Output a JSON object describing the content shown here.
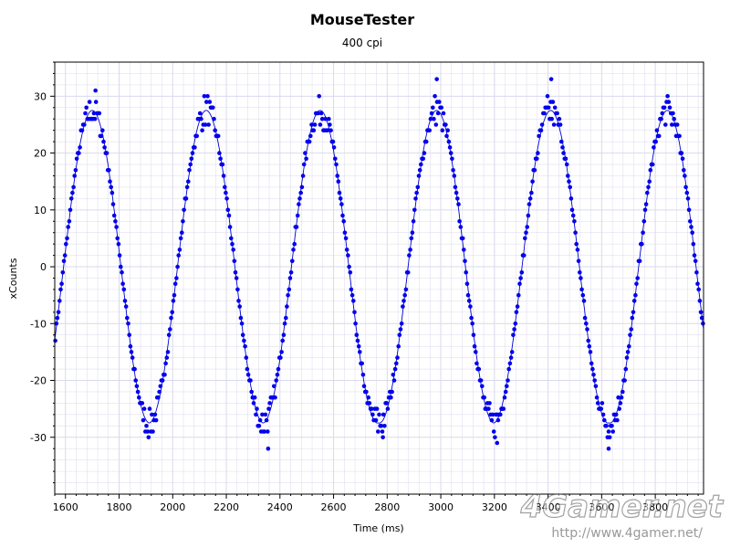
{
  "chart_data": {
    "type": "scatter",
    "title": "MouseTester",
    "subtitle": "400 cpi",
    "xlabel": "Time (ms)",
    "ylabel": "xCounts",
    "xlim": [
      1560,
      3980
    ],
    "ylim": [
      -40,
      36
    ],
    "xticks": [
      1600,
      1800,
      2000,
      2200,
      2400,
      2600,
      2800,
      3000,
      3200,
      3400,
      3600,
      3800
    ],
    "yticks": [
      30,
      20,
      10,
      0,
      -10,
      -20,
      -30
    ],
    "grid": true,
    "colors": {
      "points": "#0000ee",
      "line": "#0000cc",
      "grid": "#d9d9ee",
      "frame": "#000000"
    },
    "series": [
      {
        "kind": "points",
        "sampling_interval_ms": 4,
        "period_ms": 428,
        "amplitude": 27.5,
        "peak_times_ms": [
          1700,
          2125,
          2550,
          2985,
          3410,
          3845
        ],
        "trough_times_ms": [
          1930,
          2355,
          2780,
          3210,
          3640
        ],
        "outliers": [
          {
            "x": 1712,
            "y": 31
          },
          {
            "x": 2985,
            "y": 33
          },
          {
            "x": 3412,
            "y": 33
          },
          {
            "x": 2356,
            "y": -32
          },
          {
            "x": 3626,
            "y": -32
          },
          {
            "x": 3210,
            "y": -31
          },
          {
            "x": 2784,
            "y": -30
          }
        ]
      },
      {
        "kind": "smoothed-line"
      }
    ]
  },
  "watermark": {
    "logo": "4Gamer.net",
    "url": "http://www.4gamer.net/"
  }
}
